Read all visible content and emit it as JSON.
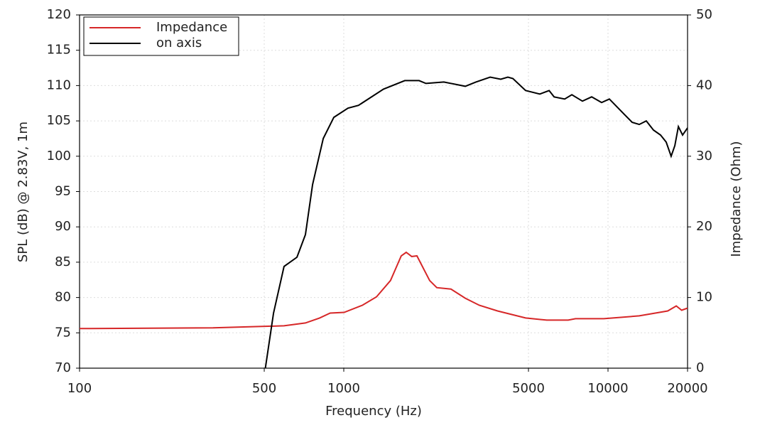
{
  "chart_data": {
    "type": "line",
    "x_label": "Frequency (Hz)",
    "y_label": "SPL (dB) @ 2.83V, 1m",
    "y2_label": "Impedance (Ohm)",
    "xscale": "log",
    "grid": true,
    "legend": "upper left",
    "xlim": [
      100,
      20000
    ],
    "xticks": [
      100,
      500,
      1000,
      5000,
      10000,
      20000
    ],
    "ylim": [
      70,
      120
    ],
    "yticks": [
      70,
      75,
      80,
      85,
      90,
      95,
      100,
      105,
      110,
      115,
      120
    ],
    "y2lim": [
      0,
      50
    ],
    "y2ticks": [
      0,
      10,
      20,
      30,
      40,
      50
    ],
    "series": [
      {
        "name": "Impedance",
        "color": "#d62728",
        "axis": "y2",
        "x": [
          100,
          320,
          594,
          716,
          810,
          888,
          1003,
          1176,
          1330,
          1503,
          1650,
          1723,
          1808,
          1892,
          2113,
          2250,
          2545,
          2884,
          3258,
          3820,
          4876,
          5866,
          7070,
          7530,
          9640,
          13130,
          16830,
          18120,
          19000,
          20000
        ],
        "values": [
          5.6,
          5.7,
          6.0,
          6.4,
          7.1,
          7.8,
          7.9,
          8.9,
          10.1,
          12.4,
          15.9,
          16.4,
          15.8,
          15.9,
          12.4,
          11.4,
          11.2,
          9.9,
          8.9,
          8.1,
          7.1,
          6.8,
          6.8,
          7.0,
          7.0,
          7.4,
          8.1,
          8.8,
          8.2,
          8.5
        ]
      },
      {
        "name": "on axis",
        "color": "#000000",
        "x": [
          505,
          542,
          594,
          665,
          716,
          762,
          836,
          917,
          1037,
          1137,
          1413,
          1702,
          1927,
          2046,
          2392,
          2884,
          3162,
          3580,
          3927,
          4178,
          4365,
          4876,
          5521,
          5984,
          6252,
          6855,
          7295,
          8004,
          8670,
          9455,
          10120,
          11610,
          12340,
          13130,
          13960,
          14860,
          15810,
          16600,
          17340,
          17900,
          18460,
          19150,
          20000
        ],
        "values": [
          70,
          77.8,
          84.4,
          85.7,
          88.9,
          96,
          102.5,
          105.5,
          106.8,
          107.2,
          109.5,
          110.7,
          110.7,
          110.3,
          110.5,
          109.9,
          110.5,
          111.2,
          110.9,
          111.2,
          111,
          109.3,
          108.8,
          109.3,
          108.4,
          108.1,
          108.7,
          107.8,
          108.4,
          107.6,
          108.1,
          105.8,
          104.8,
          104.5,
          105,
          103.7,
          103,
          102,
          100,
          101.5,
          104.2,
          103,
          104
        ]
      }
    ]
  }
}
